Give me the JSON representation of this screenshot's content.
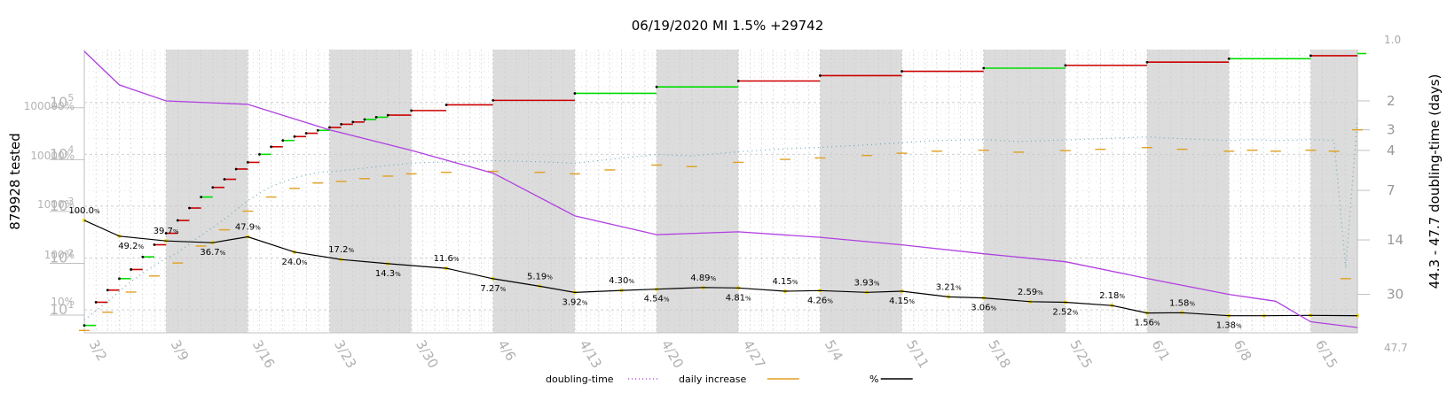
{
  "chart_data": {
    "type": "line",
    "title": "06/19/2020 MI 1.5% +29742",
    "ylabel_left": "879928 tested",
    "ylabel_right": "44.3 - 47.7 doubling-time (days)",
    "y_scale": "log",
    "x_start": "2020-03-02",
    "x_end": "2020-06-19",
    "x_tick_labels": [
      "3/2",
      "3/9",
      "3/16",
      "3/23",
      "3/30",
      "4/6",
      "4/13",
      "4/20",
      "4/27",
      "5/4",
      "5/11",
      "5/18",
      "5/25",
      "6/1",
      "6/8",
      "6/15"
    ],
    "y_left_ticks": [
      "10^1",
      "10^2",
      "10^3",
      "10^4",
      "10^5"
    ],
    "y_left_pct_ticks": [
      "10%",
      "100%",
      "1000%",
      "10000%",
      "100000%"
    ],
    "y_right_ticks": [
      "1.0",
      "2",
      "3",
      "4",
      "7",
      "14",
      "30",
      "47.7"
    ],
    "shaded_weeks": [
      "3/9",
      "3/23",
      "4/6",
      "4/20",
      "5/4",
      "5/18",
      "6/1",
      "6/15"
    ],
    "grid": true,
    "legend_position": "bottom",
    "legend": [
      {
        "name": "doubling-time",
        "color": "#b040e0",
        "style": "dotted"
      },
      {
        "name": "daily increase",
        "color": "#e0a020",
        "style": "solid"
      },
      {
        "name": "%",
        "color": "#000000",
        "style": "solid"
      }
    ],
    "series": [
      {
        "name": "tested (cumulative)",
        "color_up": "#00dd00",
        "color_down": "#cc0000",
        "x": [
          "3/2",
          "3/3",
          "3/4",
          "3/5",
          "3/6",
          "3/7",
          "3/8",
          "3/9",
          "3/10",
          "3/11",
          "3/12",
          "3/13",
          "3/14",
          "3/15",
          "3/16",
          "3/17",
          "3/18",
          "3/19",
          "3/20",
          "3/21",
          "3/22",
          "3/23",
          "3/24",
          "3/25",
          "3/26",
          "3/27",
          "3/28",
          "3/30",
          "4/2",
          "4/6",
          "4/13",
          "4/20",
          "4/27",
          "5/4",
          "5/11",
          "5/18",
          "5/25",
          "6/1",
          "6/8",
          "6/15",
          "6/19"
        ],
        "values": [
          5,
          14,
          24,
          40,
          60,
          105,
          180,
          300,
          530,
          920,
          1500,
          2300,
          3300,
          5200,
          7000,
          10000,
          14000,
          18500,
          22000,
          25500,
          29000,
          33000,
          38000,
          42000,
          47000,
          52000,
          57000,
          70000,
          90000,
          110000,
          150000,
          200000,
          260000,
          330000,
          400000,
          460000,
          520000,
          600000,
          700000,
          800000,
          879928
        ]
      },
      {
        "name": "daily increase",
        "color": "#e0a020",
        "x": [
          "3/2",
          "3/4",
          "3/6",
          "3/8",
          "3/10",
          "3/12",
          "3/14",
          "3/16",
          "3/18",
          "3/20",
          "3/22",
          "3/24",
          "3/26",
          "3/28",
          "3/30",
          "4/2",
          "4/6",
          "4/10",
          "4/13",
          "4/16",
          "4/20",
          "4/23",
          "4/27",
          "5/1",
          "5/4",
          "5/8",
          "5/11",
          "5/14",
          "5/18",
          "5/21",
          "5/25",
          "5/28",
          "6/1",
          "6/4",
          "6/8",
          "6/10",
          "6/12",
          "6/15",
          "6/17",
          "6/18",
          "6/19"
        ],
        "values": [
          4,
          9,
          22,
          45,
          80,
          170,
          350,
          800,
          1500,
          2200,
          2800,
          3000,
          3400,
          3800,
          4200,
          4500,
          4700,
          4500,
          4200,
          5000,
          6200,
          5800,
          7000,
          8000,
          8500,
          9500,
          10500,
          11500,
          12000,
          11000,
          11800,
          12500,
          13500,
          12500,
          11500,
          12000,
          11500,
          12000,
          11500,
          40,
          29742
        ]
      },
      {
        "name": "%",
        "color": "#000000",
        "x": [
          "3/2",
          "3/5",
          "3/9",
          "3/13",
          "3/16",
          "3/20",
          "3/24",
          "3/28",
          "4/2",
          "4/6",
          "4/10",
          "4/13",
          "4/17",
          "4/20",
          "4/24",
          "4/27",
          "5/1",
          "5/4",
          "5/8",
          "5/11",
          "5/15",
          "5/18",
          "5/22",
          "5/25",
          "5/29",
          "6/1",
          "6/4",
          "6/8",
          "6/11",
          "6/15",
          "6/19"
        ],
        "values": [
          100,
          49.2,
          39.7,
          36.7,
          47.9,
          24.0,
          17.2,
          14.3,
          11.6,
          7.27,
          5.19,
          3.92,
          4.3,
          4.54,
          4.89,
          4.81,
          4.15,
          4.26,
          3.93,
          4.15,
          3.21,
          3.06,
          2.59,
          2.52,
          2.18,
          1.56,
          1.58,
          1.38,
          1.38,
          1.4,
          1.38
        ]
      },
      {
        "name": "doubling-time",
        "color": "#b040e0",
        "x": [
          "3/2",
          "3/5",
          "3/9",
          "3/16",
          "3/23",
          "3/30",
          "4/6",
          "4/13",
          "4/20",
          "4/27",
          "5/4",
          "5/11",
          "5/18",
          "5/25",
          "6/1",
          "6/8",
          "6/12",
          "6/15",
          "6/19"
        ],
        "values": [
          1.0,
          1.6,
          2.0,
          2.1,
          3.0,
          4.0,
          5.5,
          10,
          13,
          12.5,
          13.5,
          15,
          17,
          19,
          24,
          30,
          33,
          44,
          47.7
        ]
      }
    ],
    "labels": [
      {
        "x": "3/2",
        "text": "100.0"
      },
      {
        "x": "3/6",
        "text": "49.2"
      },
      {
        "x": "3/9",
        "text": "39.7"
      },
      {
        "x": "3/13",
        "text": "36.7"
      },
      {
        "x": "3/16",
        "text": "47.9"
      },
      {
        "x": "3/20",
        "text": "24.0"
      },
      {
        "x": "3/24",
        "text": "17.2"
      },
      {
        "x": "3/28",
        "text": "14.3"
      },
      {
        "x": "4/2",
        "text": "11.6"
      },
      {
        "x": "4/6",
        "text": "7.27"
      },
      {
        "x": "4/10",
        "text": "5.19"
      },
      {
        "x": "4/13",
        "text": "3.92"
      },
      {
        "x": "4/17",
        "text": "4.30"
      },
      {
        "x": "4/20",
        "text": "4.54"
      },
      {
        "x": "4/24",
        "text": "4.89"
      },
      {
        "x": "4/27",
        "text": "4.81"
      },
      {
        "x": "5/1",
        "text": "4.15"
      },
      {
        "x": "5/4",
        "text": "4.26"
      },
      {
        "x": "5/8",
        "text": "3.93"
      },
      {
        "x": "5/11",
        "text": "4.15"
      },
      {
        "x": "5/15",
        "text": "3.21"
      },
      {
        "x": "5/18",
        "text": "3.06"
      },
      {
        "x": "5/22",
        "text": "2.59"
      },
      {
        "x": "5/25",
        "text": "2.52"
      },
      {
        "x": "5/29",
        "text": "2.18"
      },
      {
        "x": "6/1",
        "text": "1.56"
      },
      {
        "x": "6/4",
        "text": "1.58"
      },
      {
        "x": "6/8",
        "text": "1.38"
      }
    ]
  }
}
